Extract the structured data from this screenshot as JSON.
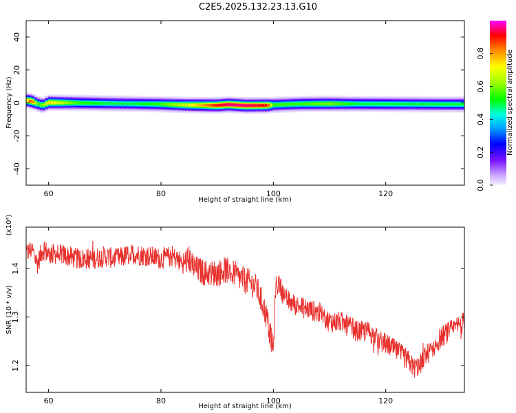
{
  "title": "C2E5.2025.132.23.13.G10",
  "chart_data": [
    {
      "type": "heatmap",
      "xlabel": "Height of straight line (km)",
      "ylabel": "Frequency (Hz)",
      "xlim": [
        56,
        134
      ],
      "ylim": [
        -50,
        50
      ],
      "xticks": [
        60,
        80,
        100,
        120
      ],
      "yticks": [
        -40,
        -20,
        0,
        20,
        40
      ],
      "colorbar": {
        "label": "Normalized spectral amplitude",
        "range": [
          0,
          1
        ],
        "ticks": [
          "0.0",
          "0.2",
          "0.4",
          "0.6",
          "0.8"
        ]
      },
      "band_profile": {
        "height_km": [
          56,
          57,
          58,
          59,
          60,
          65,
          70,
          75,
          80,
          85,
          90,
          92,
          95,
          99,
          100,
          105,
          110,
          115,
          120,
          125,
          130,
          134
        ],
        "center_hz": [
          1.5,
          1.0,
          -0.5,
          -1.5,
          0.2,
          0.0,
          -0.3,
          -0.5,
          -0.8,
          -1.3,
          -1.5,
          -1.0,
          -1.6,
          -1.5,
          -1.2,
          -0.6,
          -0.5,
          -0.6,
          -0.7,
          -0.8,
          -0.9,
          -0.9
        ],
        "peak_amplitude": [
          0.7,
          0.9,
          0.55,
          0.6,
          0.75,
          0.55,
          0.5,
          0.5,
          0.55,
          0.7,
          0.9,
          0.95,
          0.95,
          0.9,
          0.55,
          0.55,
          0.6,
          0.5,
          0.5,
          0.5,
          0.5,
          0.5
        ]
      }
    },
    {
      "type": "line",
      "xlabel": "Height of straight line (km)",
      "ylabel": "SNR (10 * v/v)",
      "y_multiplier": "(x10⁴)",
      "xlim": [
        56,
        134
      ],
      "ylim": [
        1.145,
        1.485
      ],
      "xticks": [
        60,
        80,
        100,
        120
      ],
      "yticks": [
        "1.2",
        "1.3",
        "1.4"
      ],
      "color": "#e8302c",
      "series": [
        {
          "x": [
            56,
            57,
            58,
            59,
            60,
            62,
            65,
            68,
            70,
            72,
            75,
            78,
            80,
            82,
            84,
            85,
            86,
            88,
            90,
            92,
            94,
            96,
            97,
            98,
            98.8,
            99.5,
            100,
            100.4,
            101,
            102,
            103,
            105,
            108,
            110,
            112,
            115,
            117,
            119,
            120,
            122,
            124,
            125,
            126,
            127,
            128,
            130,
            132,
            134
          ],
          "y": [
            1.43,
            1.44,
            1.41,
            1.44,
            1.43,
            1.43,
            1.42,
            1.42,
            1.425,
            1.42,
            1.43,
            1.425,
            1.42,
            1.425,
            1.41,
            1.42,
            1.4,
            1.39,
            1.39,
            1.4,
            1.38,
            1.37,
            1.36,
            1.33,
            1.3,
            1.26,
            1.23,
            1.36,
            1.37,
            1.34,
            1.33,
            1.32,
            1.31,
            1.29,
            1.29,
            1.27,
            1.27,
            1.25,
            1.245,
            1.23,
            1.21,
            1.195,
            1.2,
            1.22,
            1.23,
            1.26,
            1.275,
            1.29
          ]
        }
      ]
    }
  ]
}
